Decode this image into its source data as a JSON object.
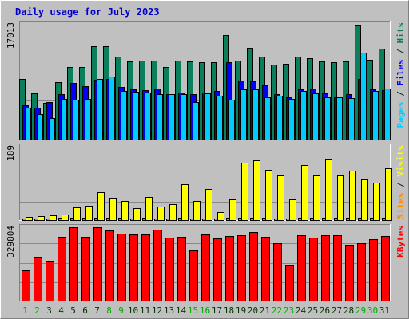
{
  "chart_data": {
    "type": "bar",
    "title": "Daily usage for July 2023",
    "categories": [
      "1",
      "2",
      "3",
      "4",
      "5",
      "6",
      "7",
      "8",
      "9",
      "10",
      "11",
      "12",
      "13",
      "14",
      "15",
      "16",
      "17",
      "18",
      "19",
      "20",
      "21",
      "22",
      "23",
      "24",
      "25",
      "26",
      "27",
      "28",
      "29",
      "30",
      "31"
    ],
    "weekend_days": [
      "1",
      "2",
      "8",
      "9",
      "15",
      "16",
      "22",
      "23",
      "29",
      "30"
    ],
    "colors": {
      "hits": "#0b7f5b",
      "files": "#0000ff",
      "pages": "#00ccff",
      "visits": "#ffff00",
      "sites": "#ff8800",
      "kbytes": "#ff0000",
      "background": "#c0c0c0",
      "gridline": "#888888",
      "title": "#0000cc",
      "weekday_label": "#003300",
      "weekend_label": "#00aa00"
    },
    "panels": [
      {
        "id": "hits-files-pages",
        "ymax_label": "17013",
        "ylim": [
          0,
          17013
        ],
        "legend": [
          {
            "text": "Pages",
            "color": "#00ccff"
          },
          {
            "text": " / ",
            "color": "#003300"
          },
          {
            "text": "Files",
            "color": "#0000ff"
          },
          {
            "text": " / ",
            "color": "#003300"
          },
          {
            "text": "Hits",
            "color": "#0b7f5b"
          }
        ],
        "series": [
          {
            "name": "Hits",
            "color": "#0b7f5b",
            "values": [
              8900,
              6800,
              5400,
              8400,
              10600,
              10600,
              13600,
              13600,
              12100,
              11400,
              11500,
              11500,
              10600,
              11500,
              11400,
              11300,
              11300,
              15300,
              11500,
              13400,
              12100,
              10900,
              11100,
              12100,
              11900,
              11400,
              11300,
              11400,
              16800,
              11700,
              13300
            ]
          },
          {
            "name": "Files",
            "color": "#0000ff",
            "values": [
              5000,
              4700,
              5500,
              6700,
              8300,
              7800,
              8700,
              8800,
              7700,
              7300,
              7200,
              7500,
              6700,
              6900,
              6700,
              6900,
              7100,
              11300,
              8600,
              8500,
              7900,
              6700,
              6200,
              7300,
              7400,
              6800,
              6200,
              6600,
              8800,
              7300,
              7200
            ]
          },
          {
            "name": "Pages",
            "color": "#00ccff",
            "values": [
              4700,
              3700,
              3100,
              5900,
              5800,
              5900,
              8800,
              9200,
              7100,
              7000,
              6900,
              6600,
              6600,
              6700,
              5500,
              6800,
              6400,
              5800,
              7300,
              7300,
              6200,
              6400,
              5900,
              7100,
              6800,
              6200,
              6200,
              6100,
              12700,
              7100,
              7400
            ]
          }
        ]
      },
      {
        "id": "sites-visits",
        "ymax_label": "189",
        "ylim": [
          0,
          189
        ],
        "legend": [
          {
            "text": "Sites",
            "color": "#ff8800"
          },
          {
            "text": " / ",
            "color": "#003300"
          },
          {
            "text": "Visits",
            "color": "#ffff00"
          }
        ],
        "series": [
          {
            "name": "Sites",
            "color": "#ff8800",
            "values": [
              4,
              4,
              5,
              6,
              6,
              6,
              6,
              6,
              6,
              5,
              6,
              5,
              5,
              6,
              5,
              5,
              4,
              6,
              6,
              6,
              6,
              5,
              5,
              6,
              6,
              6,
              6,
              6,
              6,
              6,
              6
            ]
          },
          {
            "name": "Visits",
            "color": "#ffff00",
            "values": [
              9,
              10,
              13,
              15,
              33,
              37,
              72,
              56,
              48,
              30,
              59,
              34,
              40,
              91,
              49,
              80,
              20,
              52,
              146,
              153,
              128,
              113,
              53,
              141,
              114,
              157,
              113,
              125,
              104,
              95,
              132
            ]
          }
        ]
      },
      {
        "id": "kbytes",
        "ymax_label": "329804",
        "ylim": [
          0,
          329804
        ],
        "legend": [
          {
            "text": "KBytes",
            "color": "#ff0000"
          }
        ],
        "series": [
          {
            "name": "KBytes",
            "color": "#ff0000",
            "values": [
              135000,
              195000,
              179000,
              285000,
              327000,
              284000,
              327000,
              312000,
              298000,
              296000,
              293000,
              314000,
              280000,
              283000,
              223000,
              293000,
              276000,
              289000,
              290000,
              305000,
              282000,
              256000,
              161000,
              290000,
              280000,
              292000,
              292000,
              248000,
              254000,
              273000,
              287000
            ]
          }
        ]
      }
    ]
  }
}
